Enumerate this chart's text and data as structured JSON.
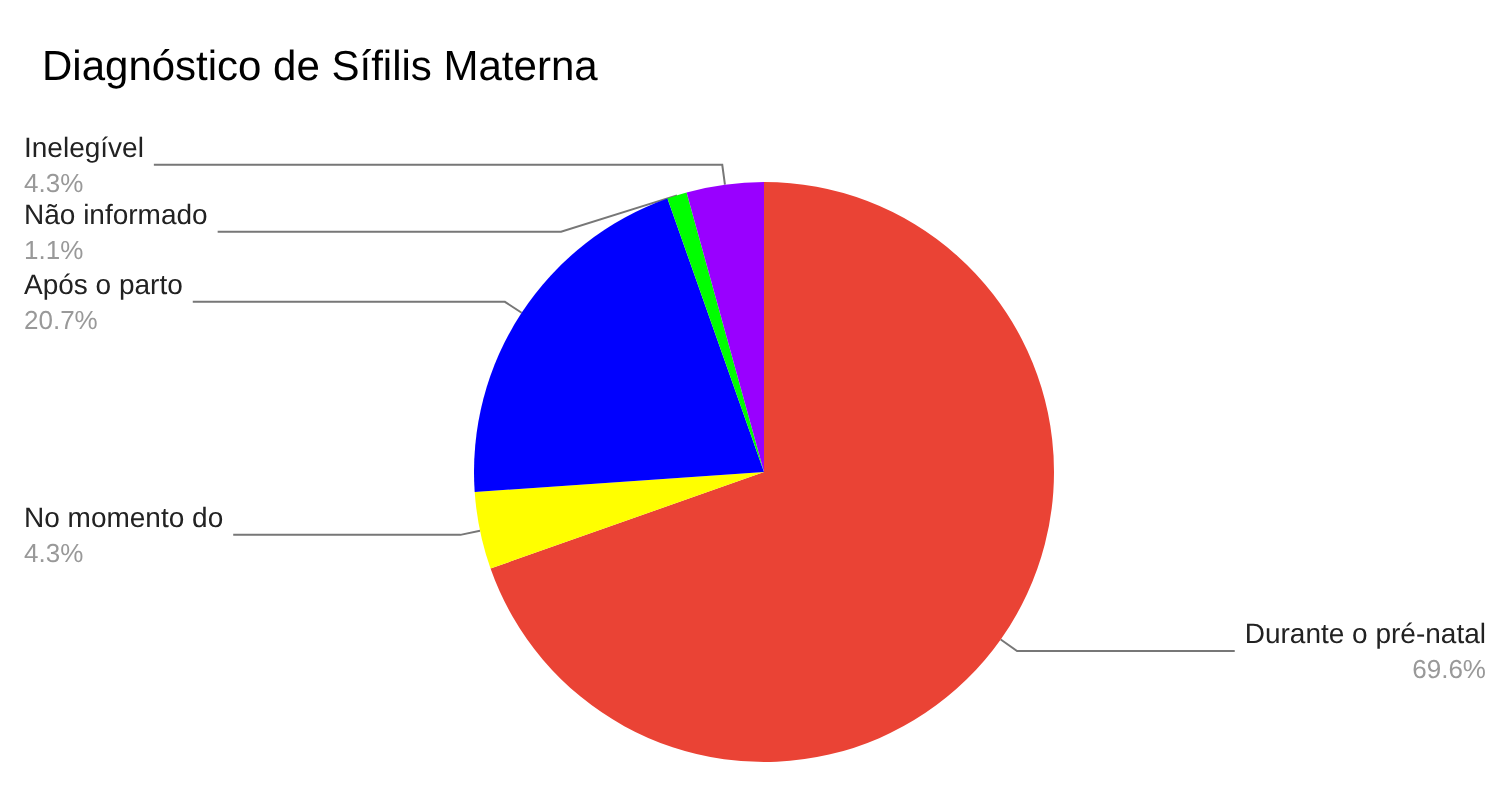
{
  "chart_data": {
    "type": "pie",
    "title": "Diagnóstico de Sífilis Materna",
    "categories": [
      "Durante o pré-natal",
      "No momento do",
      "Após o parto",
      "Não informado",
      "Inelegível"
    ],
    "values": [
      69.6,
      4.3,
      20.7,
      1.1,
      4.3
    ],
    "value_labels": [
      "69.6%",
      "4.3%",
      "20.7%",
      "1.1%",
      "4.3%"
    ],
    "colors": [
      "#ea4335",
      "#ffff00",
      "#0000ff",
      "#00ff00",
      "#9900ff"
    ],
    "legend": false
  }
}
